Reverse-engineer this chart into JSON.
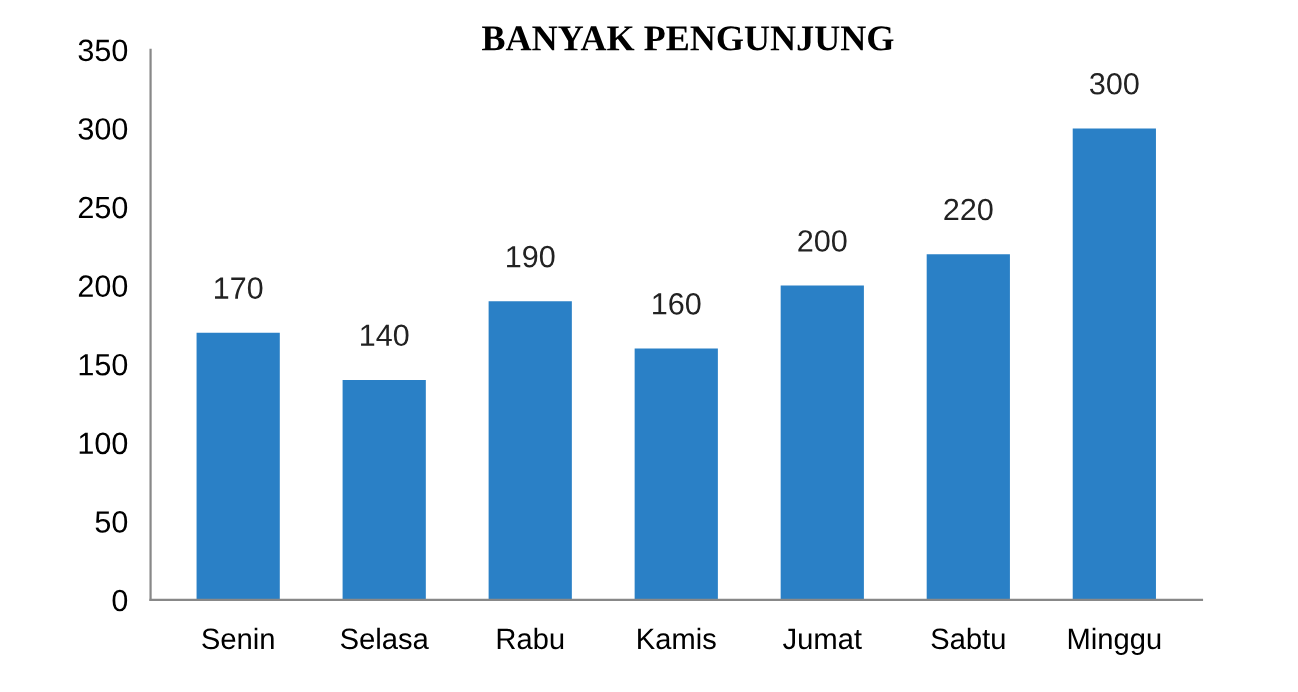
{
  "chart_data": {
    "type": "bar",
    "title": "BANYAK PENGUNJUNG",
    "categories": [
      "Senin",
      "Selasa",
      "Rabu",
      "Kamis",
      "Jumat",
      "Sabtu",
      "Minggu"
    ],
    "values": [
      170,
      140,
      190,
      160,
      200,
      220,
      300
    ],
    "color": "#2a80c6",
    "ylim": [
      0,
      350
    ],
    "yticks": [
      0,
      50,
      100,
      150,
      200,
      250,
      300,
      350
    ],
    "data_labels": true,
    "grid": false,
    "legend": false
  }
}
